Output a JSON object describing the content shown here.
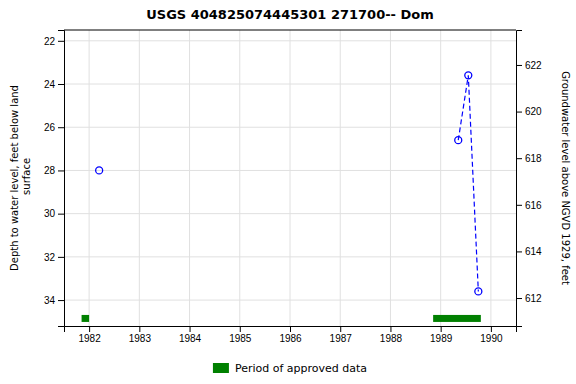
{
  "chart_data": {
    "type": "scatter",
    "title": "USGS 404825074445301 271700-- Dom",
    "y_label": "Depth to water level, feet below land\n surface",
    "y2_label": "Groundwater level above NGVD 1929, feet",
    "xlim": [
      1981.5,
      1990.5
    ],
    "xticks": [
      1982,
      1983,
      1984,
      1985,
      1986,
      1987,
      1988,
      1989,
      1990
    ],
    "ylim": [
      35.2,
      21.5
    ],
    "yticks": [
      22,
      24,
      26,
      28,
      30,
      32,
      34
    ],
    "y2lim": [
      610.8,
      623.5
    ],
    "y2ticks": [
      612,
      614,
      616,
      618,
      620,
      622
    ],
    "grid": true,
    "legend": "bottom",
    "series": [
      {
        "type": "scatter",
        "marker": "circle",
        "color": "#0000ff",
        "x": [
          1982.2,
          1989.35,
          1989.55,
          1989.75
        ],
        "values": [
          28.0,
          26.6,
          23.6,
          33.6
        ]
      },
      {
        "type": "line",
        "line_style": "dashed",
        "color": "#0000ff",
        "x": [
          1982.2,
          1989.35,
          1989.55,
          1989.75
        ],
        "values": [
          null,
          26.6,
          23.6,
          33.6
        ]
      },
      {
        "type": "bar",
        "orientation": "horizontal",
        "name": "Period of approved data",
        "color": "#008000",
        "x_start": [
          1981.85,
          1988.85
        ],
        "x_end": [
          1982.0,
          1989.8
        ],
        "values": [
          34.85,
          34.85
        ]
      }
    ]
  }
}
